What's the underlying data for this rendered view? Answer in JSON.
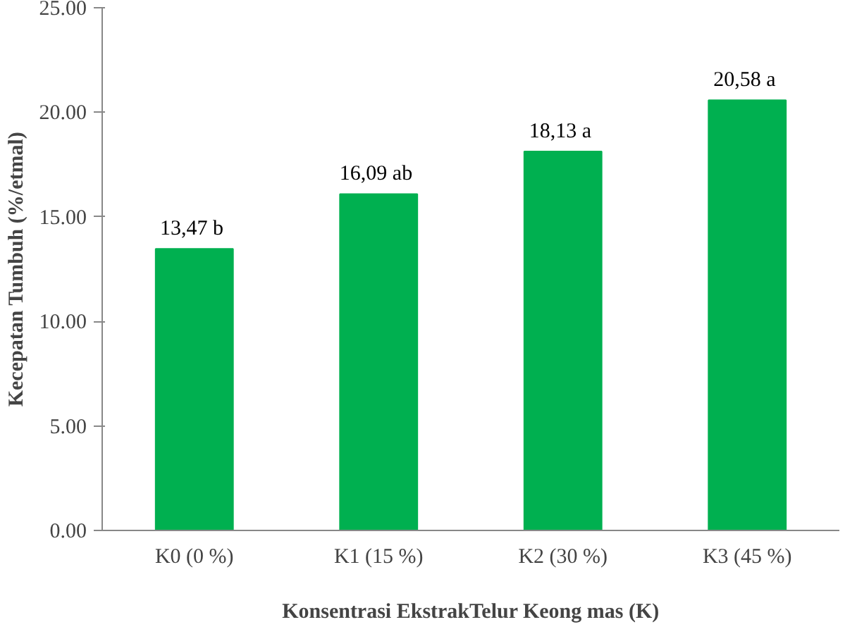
{
  "chart_data": {
    "type": "bar",
    "xlabel": "Konsentrasi EkstrakTelur Keong mas (K)",
    "ylabel": "Kecepatan Tumbuh (%/etmal)",
    "categories": [
      "K0 (0 %)",
      "K1 (15 %)",
      "K2 (30 %)",
      "K3 (45 %)"
    ],
    "values": [
      13.47,
      16.09,
      18.13,
      20.58
    ],
    "value_labels": [
      "13,47  b",
      "16,09  ab",
      "18,13  a",
      "20,58  a"
    ],
    "color": "#00b050",
    "ylim": [
      0,
      25
    ],
    "yticks": [
      {
        "value": 0,
        "label": "0.00"
      },
      {
        "value": 5,
        "label": "5.00"
      },
      {
        "value": 10,
        "label": "10.00"
      },
      {
        "value": 15,
        "label": "15.00"
      },
      {
        "value": 20,
        "label": "20.00"
      },
      {
        "value": 25,
        "label": "25.00"
      }
    ],
    "grid": false
  }
}
